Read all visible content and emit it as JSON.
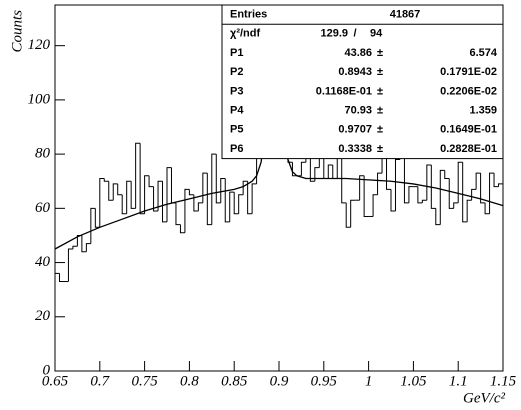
{
  "chart_data": {
    "type": "histogram",
    "x_label": "GeV/c²",
    "y_label": "Counts",
    "bins": [
      0.65,
      0.655,
      0.66,
      0.665,
      0.67,
      0.675,
      0.68,
      0.685,
      0.69,
      0.695,
      0.7,
      0.705,
      0.71,
      0.715,
      0.72,
      0.725,
      0.73,
      0.735,
      0.74,
      0.745,
      0.75,
      0.755,
      0.76,
      0.765,
      0.77,
      0.775,
      0.78,
      0.785,
      0.79,
      0.795,
      0.8,
      0.805,
      0.81,
      0.815,
      0.82,
      0.825,
      0.83,
      0.835,
      0.84,
      0.845,
      0.85,
      0.855,
      0.86,
      0.865,
      0.87,
      0.875,
      0.88,
      0.885,
      0.89,
      0.895,
      0.9,
      0.905,
      0.91,
      0.915,
      0.92,
      0.925,
      0.93,
      0.935,
      0.94,
      0.945,
      0.95,
      0.955,
      0.96,
      0.965,
      0.97,
      0.975,
      0.98,
      0.985,
      0.99,
      0.995,
      1.0,
      1.005,
      1.01,
      1.015,
      1.02,
      1.025,
      1.03,
      1.035,
      1.04,
      1.045,
      1.05,
      1.055,
      1.06,
      1.065,
      1.07,
      1.075,
      1.08,
      1.085,
      1.09,
      1.095,
      1.1,
      1.105,
      1.11,
      1.115,
      1.12,
      1.125,
      1.13,
      1.135,
      1.14,
      1.145,
      1.15
    ],
    "values": [
      36,
      33,
      33,
      45,
      46,
      50,
      44,
      47,
      60,
      53,
      71,
      70,
      63,
      69,
      65,
      58,
      70,
      60,
      84,
      58,
      72,
      68,
      59,
      70,
      55,
      75,
      62,
      54,
      51,
      67,
      65,
      59,
      62,
      73,
      54,
      80,
      62,
      71,
      55,
      66,
      58,
      65,
      70,
      58,
      69,
      80,
      98,
      100,
      121,
      112,
      88,
      93,
      77,
      72,
      72,
      77,
      82,
      70,
      75,
      80,
      71,
      76,
      71,
      87,
      62,
      53,
      63,
      63,
      72,
      57,
      57,
      65,
      73,
      90,
      67,
      59,
      78,
      90,
      62,
      68,
      68,
      62,
      63,
      76,
      60,
      54,
      74,
      71,
      60,
      62,
      77,
      55,
      63,
      67,
      73,
      62,
      58,
      73,
      68,
      69
    ],
    "color": "#000000",
    "fit": {
      "x": [
        0.65,
        0.675,
        0.7,
        0.725,
        0.75,
        0.775,
        0.8,
        0.825,
        0.85,
        0.86,
        0.87,
        0.875,
        0.88,
        0.885,
        0.89,
        0.895,
        0.9,
        0.905,
        0.91,
        0.915,
        0.92,
        0.93,
        0.95,
        0.975,
        1.0,
        1.025,
        1.05,
        1.075,
        1.1,
        1.125,
        1.15
      ],
      "values": [
        45,
        49.5,
        53,
        56,
        59,
        61.5,
        63.5,
        65.5,
        67,
        68,
        70,
        72,
        77,
        89,
        106,
        113,
        105,
        89,
        78,
        73.5,
        72,
        71,
        71,
        71,
        70.5,
        70,
        69,
        67.5,
        65.5,
        63.5,
        61
      ]
    },
    "xlim": [
      0.65,
      1.15
    ],
    "ylim": [
      0,
      135
    ],
    "xticks": [
      0.65,
      0.7,
      0.75,
      0.8,
      0.85,
      0.9,
      0.95,
      1,
      1.05,
      1.1,
      1.15
    ],
    "yticks": [
      0,
      20,
      40,
      60,
      80,
      100,
      120
    ],
    "stats": {
      "rows": [
        [
          "Entries",
          "41867"
        ],
        [
          "χ²/ndf",
          "129.9",
          "/",
          "94"
        ],
        [
          "P1",
          "43.86",
          "±",
          "6.574"
        ],
        [
          "P2",
          "0.8943",
          "±",
          "0.1791E-02"
        ],
        [
          "P3",
          "0.1168E-01",
          "±",
          "0.2206E-02"
        ],
        [
          "P4",
          "70.93",
          "±",
          "1.359"
        ],
        [
          "P5",
          "0.9707",
          "±",
          "0.1649E-01"
        ],
        [
          "P6",
          "0.3338",
          "±",
          "0.2828E-01"
        ]
      ]
    }
  }
}
